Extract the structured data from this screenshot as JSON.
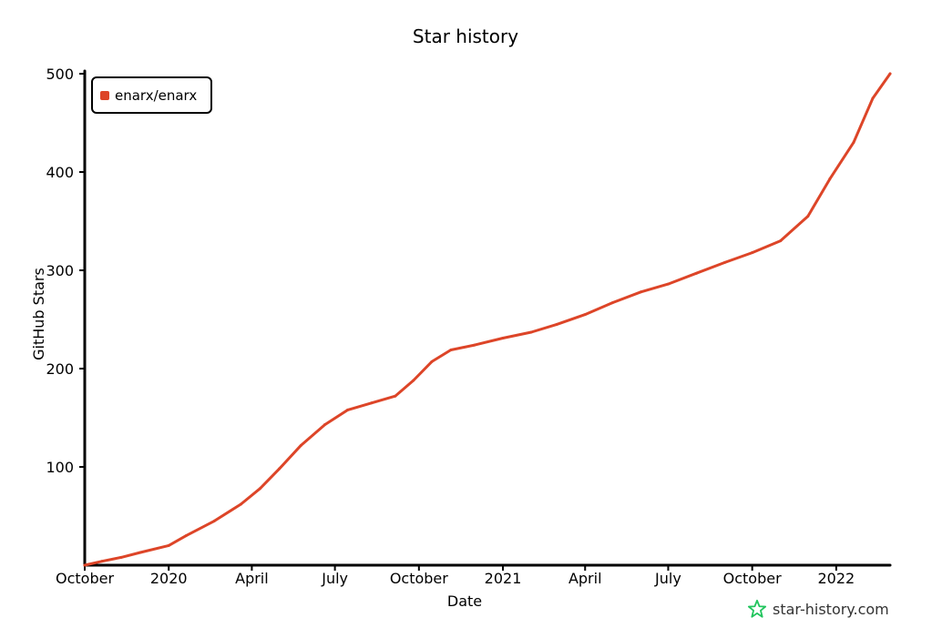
{
  "chart_data": {
    "type": "line",
    "title": "Star history",
    "xlabel": "Date",
    "ylabel": "GitHub Stars",
    "x_tick_labels": [
      "October",
      "2020",
      "April",
      "July",
      "October",
      "2021",
      "April",
      "July",
      "October",
      "2022"
    ],
    "y_ticks": [
      100,
      200,
      300,
      400,
      500
    ],
    "ylim": [
      0,
      500
    ],
    "grid": false,
    "legend_position": "top-left",
    "series": [
      {
        "name": "enarx/enarx",
        "color": "#dd4528",
        "points": [
          [
            "2019-10-01",
            0
          ],
          [
            "2019-10-20",
            4
          ],
          [
            "2019-11-10",
            8
          ],
          [
            "2019-12-01",
            13
          ],
          [
            "2020-01-01",
            20
          ],
          [
            "2020-01-20",
            30
          ],
          [
            "2020-02-20",
            45
          ],
          [
            "2020-03-20",
            62
          ],
          [
            "2020-04-10",
            78
          ],
          [
            "2020-05-01",
            98
          ],
          [
            "2020-05-25",
            122
          ],
          [
            "2020-06-20",
            143
          ],
          [
            "2020-07-15",
            158
          ],
          [
            "2020-08-10",
            165
          ],
          [
            "2020-09-05",
            172
          ],
          [
            "2020-09-25",
            188
          ],
          [
            "2020-10-15",
            207
          ],
          [
            "2020-11-05",
            219
          ],
          [
            "2020-12-01",
            224
          ],
          [
            "2021-01-01",
            231
          ],
          [
            "2021-02-01",
            237
          ],
          [
            "2021-03-01",
            245
          ],
          [
            "2021-04-01",
            255
          ],
          [
            "2021-05-01",
            267
          ],
          [
            "2021-06-01",
            278
          ],
          [
            "2021-07-01",
            286
          ],
          [
            "2021-08-01",
            297
          ],
          [
            "2021-09-01",
            308
          ],
          [
            "2021-10-01",
            318
          ],
          [
            "2021-11-01",
            330
          ],
          [
            "2021-12-01",
            355
          ],
          [
            "2021-12-25",
            393
          ],
          [
            "2022-01-20",
            430
          ],
          [
            "2022-02-10",
            475
          ],
          [
            "2022-03-01",
            500
          ]
        ]
      }
    ]
  },
  "watermark": {
    "text": "star-history.com",
    "icon": "star-icon",
    "color": "#22c55e"
  }
}
